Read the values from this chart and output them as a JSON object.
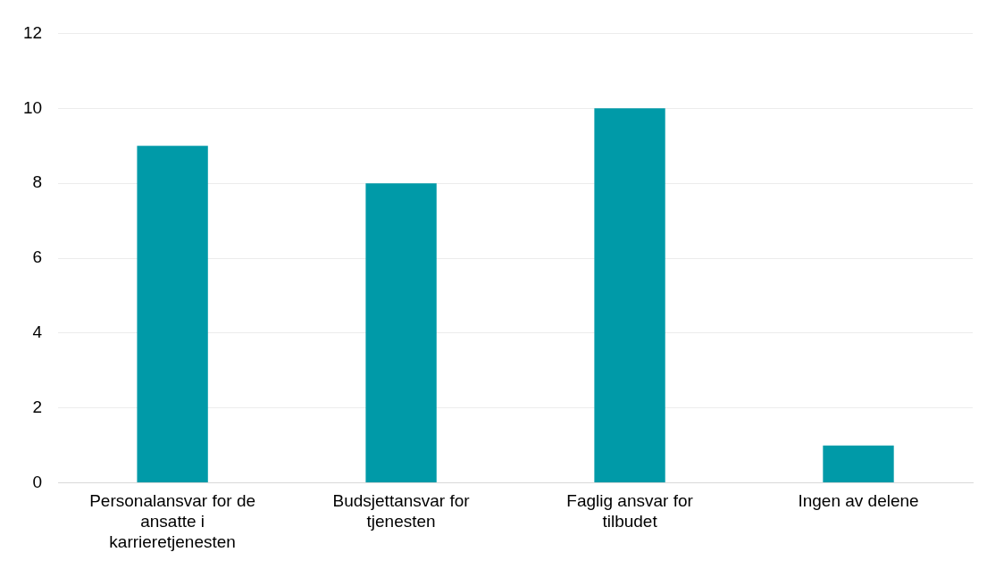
{
  "chart_data": {
    "type": "bar",
    "categories": [
      "Personalansvar for de ansatte i karrieretjenesten",
      "Budsjettansvar for tjenesten",
      "Faglig ansvar for tilbudet",
      "Ingen av delene"
    ],
    "values": [
      9,
      8,
      10,
      1
    ],
    "color": "#009aa8",
    "ylim": [
      0,
      12
    ],
    "yticks": [
      0,
      2,
      4,
      6,
      8,
      10,
      12
    ],
    "grid": "y",
    "legend": false
  }
}
